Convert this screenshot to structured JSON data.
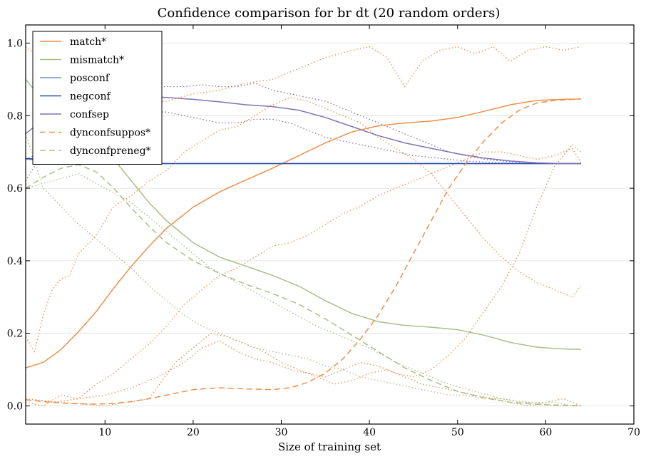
{
  "chart_data": {
    "type": "line",
    "title": "Confidence comparison for br dt (20 random orders)",
    "xlabel": "Size of training set",
    "ylabel": "",
    "xlim": [
      1,
      70
    ],
    "ylim": [
      -0.05,
      1.05
    ],
    "xticks": [
      10,
      20,
      30,
      40,
      50,
      60,
      70
    ],
    "yticks": [
      0.0,
      0.2,
      0.4,
      0.6,
      0.8,
      1.0
    ],
    "grid": "horizontal",
    "legend_position": "top-left",
    "series": [
      {
        "name": "match*",
        "color": "#EE8F4C",
        "style": "solid",
        "x": [
          1,
          3,
          5,
          7,
          9,
          11,
          13,
          15,
          17,
          20,
          23,
          26,
          29,
          32,
          35,
          38,
          41,
          44,
          47,
          50,
          53,
          56,
          59,
          62,
          64
        ],
        "y": [
          0.105,
          0.12,
          0.155,
          0.205,
          0.26,
          0.325,
          0.385,
          0.44,
          0.49,
          0.548,
          0.59,
          0.623,
          0.655,
          0.69,
          0.725,
          0.755,
          0.772,
          0.78,
          0.785,
          0.795,
          0.812,
          0.83,
          0.842,
          0.845,
          0.846
        ]
      },
      {
        "name": "mismatch*",
        "color": "#AABF8A",
        "style": "solid",
        "x": [
          1,
          3,
          5,
          7,
          9,
          11,
          13,
          15,
          17,
          20,
          23,
          26,
          29,
          32,
          35,
          38,
          41,
          44,
          47,
          50,
          53,
          56,
          59,
          62,
          64
        ],
        "y": [
          0.9,
          0.84,
          0.79,
          0.76,
          0.73,
          0.68,
          0.62,
          0.56,
          0.51,
          0.45,
          0.41,
          0.385,
          0.36,
          0.33,
          0.29,
          0.255,
          0.232,
          0.222,
          0.217,
          0.21,
          0.195,
          0.175,
          0.162,
          0.157,
          0.156
        ]
      },
      {
        "name": "posconf",
        "color": "#6F93C2",
        "style": "solid",
        "x": [
          1,
          5,
          10,
          15,
          20,
          25,
          30,
          35,
          40,
          45,
          50,
          55,
          60,
          64
        ],
        "y": [
          0.68,
          0.675,
          0.669,
          0.668,
          0.668,
          0.668,
          0.668,
          0.668,
          0.668,
          0.668,
          0.668,
          0.668,
          0.668,
          0.668
        ]
      },
      {
        "name": "negconf",
        "color": "#2E4DAA",
        "style": "solid",
        "x": [
          1,
          5,
          10,
          15,
          20,
          25,
          30,
          35,
          40,
          45,
          50,
          55,
          60,
          64
        ],
        "y": [
          0.682,
          0.676,
          0.67,
          0.668,
          0.668,
          0.668,
          0.668,
          0.668,
          0.668,
          0.668,
          0.668,
          0.668,
          0.668,
          0.668
        ]
      },
      {
        "name": "confsep",
        "color": "#8172B2",
        "style": "solid",
        "x": [
          1,
          3,
          5,
          7,
          9,
          11,
          13,
          15,
          17,
          20,
          23,
          26,
          29,
          32,
          35,
          38,
          41,
          44,
          47,
          50,
          53,
          56,
          59,
          62,
          64
        ],
        "y": [
          0.75,
          0.79,
          0.83,
          0.845,
          0.85,
          0.852,
          0.852,
          0.852,
          0.85,
          0.845,
          0.838,
          0.83,
          0.825,
          0.815,
          0.795,
          0.77,
          0.745,
          0.725,
          0.71,
          0.695,
          0.683,
          0.675,
          0.67,
          0.668,
          0.668
        ]
      },
      {
        "name": "dynconfsuppos*",
        "color": "#EE8F4C",
        "style": "dashed",
        "x": [
          1,
          3,
          5,
          7,
          9,
          11,
          13,
          15,
          17,
          20,
          23,
          26,
          29,
          31,
          33,
          35,
          37,
          39,
          41,
          43,
          45,
          47,
          49,
          51,
          53,
          55,
          57,
          59,
          61,
          64
        ],
        "y": [
          0.017,
          0.012,
          0.008,
          0.006,
          0.005,
          0.007,
          0.012,
          0.02,
          0.03,
          0.045,
          0.05,
          0.047,
          0.045,
          0.05,
          0.065,
          0.09,
          0.13,
          0.185,
          0.25,
          0.33,
          0.42,
          0.51,
          0.6,
          0.67,
          0.73,
          0.78,
          0.815,
          0.835,
          0.842,
          0.846
        ]
      },
      {
        "name": "dynconfpreneg*",
        "color": "#AABF8A",
        "style": "dashed",
        "x": [
          1,
          3,
          5,
          7,
          9,
          11,
          13,
          15,
          17,
          20,
          23,
          26,
          29,
          32,
          35,
          38,
          41,
          44,
          47,
          50,
          53,
          56,
          59,
          62,
          64
        ],
        "y": [
          0.6,
          0.63,
          0.655,
          0.665,
          0.645,
          0.6,
          0.545,
          0.495,
          0.45,
          0.4,
          0.365,
          0.335,
          0.31,
          0.28,
          0.24,
          0.195,
          0.15,
          0.105,
          0.07,
          0.04,
          0.022,
          0.01,
          0.004,
          0.002,
          0.001
        ]
      }
    ],
    "extra_traces": [
      {
        "color": "#EE8F4C",
        "style": "dotted",
        "x": [
          1,
          3,
          5,
          8,
          11,
          14,
          17,
          20,
          23,
          26,
          29,
          32,
          35,
          38,
          40,
          42,
          44,
          46,
          48,
          50,
          52,
          54,
          56,
          58,
          60,
          62,
          64
        ],
        "y": [
          0.99,
          0.95,
          0.9,
          0.88,
          0.85,
          0.83,
          0.84,
          0.86,
          0.87,
          0.89,
          0.9,
          0.93,
          0.96,
          0.98,
          0.99,
          0.96,
          0.88,
          0.95,
          0.98,
          0.99,
          0.97,
          0.99,
          0.95,
          0.98,
          0.99,
          0.98,
          0.99
        ]
      },
      {
        "color": "#EE8F4C",
        "style": "dotted",
        "x": [
          1,
          2,
          3,
          4,
          5,
          6,
          7,
          9,
          11,
          13,
          15,
          17,
          19,
          21,
          23,
          25,
          27,
          29,
          31,
          33,
          35,
          37,
          39,
          41,
          43,
          45,
          47,
          49,
          51,
          53,
          55,
          57,
          59,
          61,
          63,
          64
        ],
        "y": [
          0.19,
          0.15,
          0.25,
          0.32,
          0.35,
          0.36,
          0.42,
          0.47,
          0.55,
          0.58,
          0.62,
          0.65,
          0.7,
          0.73,
          0.76,
          0.77,
          0.8,
          0.83,
          0.85,
          0.84,
          0.82,
          0.8,
          0.78,
          0.74,
          0.71,
          0.68,
          0.64,
          0.58,
          0.52,
          0.46,
          0.41,
          0.37,
          0.34,
          0.32,
          0.3,
          0.33
        ]
      },
      {
        "color": "#EE8F4C",
        "style": "dotted",
        "x": [
          1,
          3,
          5,
          7,
          9,
          11,
          13,
          15,
          17,
          19,
          21,
          23,
          25,
          27,
          29,
          31,
          33,
          35,
          37,
          39,
          41,
          43,
          45,
          47,
          49,
          51,
          53,
          55,
          57,
          59,
          61,
          63,
          64
        ],
        "y": [
          0.01,
          0.0,
          0.03,
          0.02,
          0.06,
          0.09,
          0.13,
          0.17,
          0.22,
          0.28,
          0.32,
          0.36,
          0.38,
          0.41,
          0.44,
          0.45,
          0.47,
          0.5,
          0.53,
          0.55,
          0.58,
          0.6,
          0.62,
          0.64,
          0.66,
          0.68,
          0.7,
          0.7,
          0.69,
          0.68,
          0.69,
          0.71,
          0.67
        ]
      },
      {
        "color": "#EE8F4C",
        "style": "dotted",
        "x": [
          1,
          4,
          7,
          10,
          13,
          16,
          19,
          21,
          23,
          25,
          27,
          29,
          31,
          33,
          35,
          37,
          39,
          41,
          43,
          45,
          47,
          49,
          51,
          53,
          55,
          57,
          59,
          61,
          63,
          64
        ],
        "y": [
          0.02,
          0.01,
          0.02,
          0.03,
          0.05,
          0.08,
          0.12,
          0.16,
          0.18,
          0.15,
          0.13,
          0.12,
          0.1,
          0.09,
          0.08,
          0.1,
          0.12,
          0.11,
          0.09,
          0.08,
          0.1,
          0.14,
          0.19,
          0.26,
          0.33,
          0.42,
          0.55,
          0.66,
          0.72,
          0.7
        ]
      },
      {
        "color": "#EE8F4C",
        "style": "dotted",
        "x": [
          1,
          5,
          10,
          15,
          18,
          20,
          22,
          24,
          26,
          28,
          30,
          32,
          34,
          36,
          38,
          40,
          42,
          44,
          46,
          48,
          50,
          52,
          54,
          56,
          58,
          60,
          62,
          64
        ],
        "y": [
          0.02,
          0.01,
          0.0,
          0.02,
          0.12,
          0.16,
          0.2,
          0.19,
          0.17,
          0.15,
          0.12,
          0.1,
          0.08,
          0.06,
          0.07,
          0.09,
          0.1,
          0.08,
          0.06,
          0.05,
          0.04,
          0.03,
          0.02,
          0.01,
          0.0,
          0.01,
          0.02,
          0.0
        ]
      },
      {
        "color": "#AABF8A",
        "style": "dotted",
        "x": [
          1,
          3,
          5,
          7,
          9,
          11,
          13,
          15,
          17,
          19,
          21,
          23,
          25,
          27,
          29,
          31,
          33,
          35,
          37,
          39,
          41,
          43,
          45,
          47,
          49,
          51,
          53,
          55,
          57,
          59,
          61,
          63,
          64
        ],
        "y": [
          0.75,
          0.6,
          0.55,
          0.5,
          0.46,
          0.42,
          0.38,
          0.33,
          0.29,
          0.25,
          0.22,
          0.2,
          0.18,
          0.16,
          0.15,
          0.14,
          0.13,
          0.11,
          0.1,
          0.08,
          0.07,
          0.06,
          0.05,
          0.04,
          0.03,
          0.03,
          0.02,
          0.02,
          0.01,
          0.01,
          0.01,
          0.0,
          0.0
        ]
      },
      {
        "color": "#AABF8A",
        "style": "dotted",
        "x": [
          1,
          4,
          7,
          10,
          13,
          16,
          19,
          22,
          25,
          28,
          31,
          34,
          37,
          40,
          43,
          46,
          49,
          52,
          55,
          58,
          61,
          64
        ],
        "y": [
          0.6,
          0.62,
          0.64,
          0.6,
          0.56,
          0.5,
          0.44,
          0.38,
          0.34,
          0.3,
          0.26,
          0.22,
          0.19,
          0.16,
          0.12,
          0.09,
          0.06,
          0.04,
          0.02,
          0.01,
          0.0,
          0.0
        ]
      },
      {
        "color": "#8172B2",
        "style": "dotted",
        "x": [
          1,
          3,
          5,
          7,
          9,
          11,
          13,
          15,
          17,
          19,
          21,
          23,
          25,
          27,
          29,
          31,
          33,
          35,
          37,
          39,
          41,
          43,
          45,
          47,
          49,
          51,
          53,
          55,
          57,
          59,
          61,
          63,
          64
        ],
        "y": [
          0.62,
          0.7,
          0.76,
          0.8,
          0.83,
          0.85,
          0.87,
          0.88,
          0.88,
          0.88,
          0.885,
          0.88,
          0.88,
          0.89,
          0.87,
          0.86,
          0.85,
          0.84,
          0.82,
          0.8,
          0.78,
          0.76,
          0.74,
          0.72,
          0.7,
          0.69,
          0.68,
          0.675,
          0.67,
          0.668,
          0.668,
          0.668,
          0.668
        ]
      },
      {
        "color": "#8172B2",
        "style": "dotted",
        "x": [
          1,
          3,
          5,
          7,
          9,
          11,
          13,
          15,
          17,
          19,
          21,
          23,
          25,
          27,
          29,
          31,
          33,
          35,
          37,
          39,
          41,
          43,
          45,
          47,
          49,
          51,
          53,
          55,
          57,
          59,
          61,
          63,
          64
        ],
        "y": [
          0.68,
          0.7,
          0.73,
          0.76,
          0.79,
          0.8,
          0.81,
          0.81,
          0.81,
          0.8,
          0.79,
          0.78,
          0.78,
          0.79,
          0.79,
          0.78,
          0.76,
          0.74,
          0.73,
          0.72,
          0.71,
          0.7,
          0.69,
          0.685,
          0.68,
          0.675,
          0.672,
          0.67,
          0.668,
          0.668,
          0.668,
          0.668,
          0.668
        ]
      }
    ]
  }
}
